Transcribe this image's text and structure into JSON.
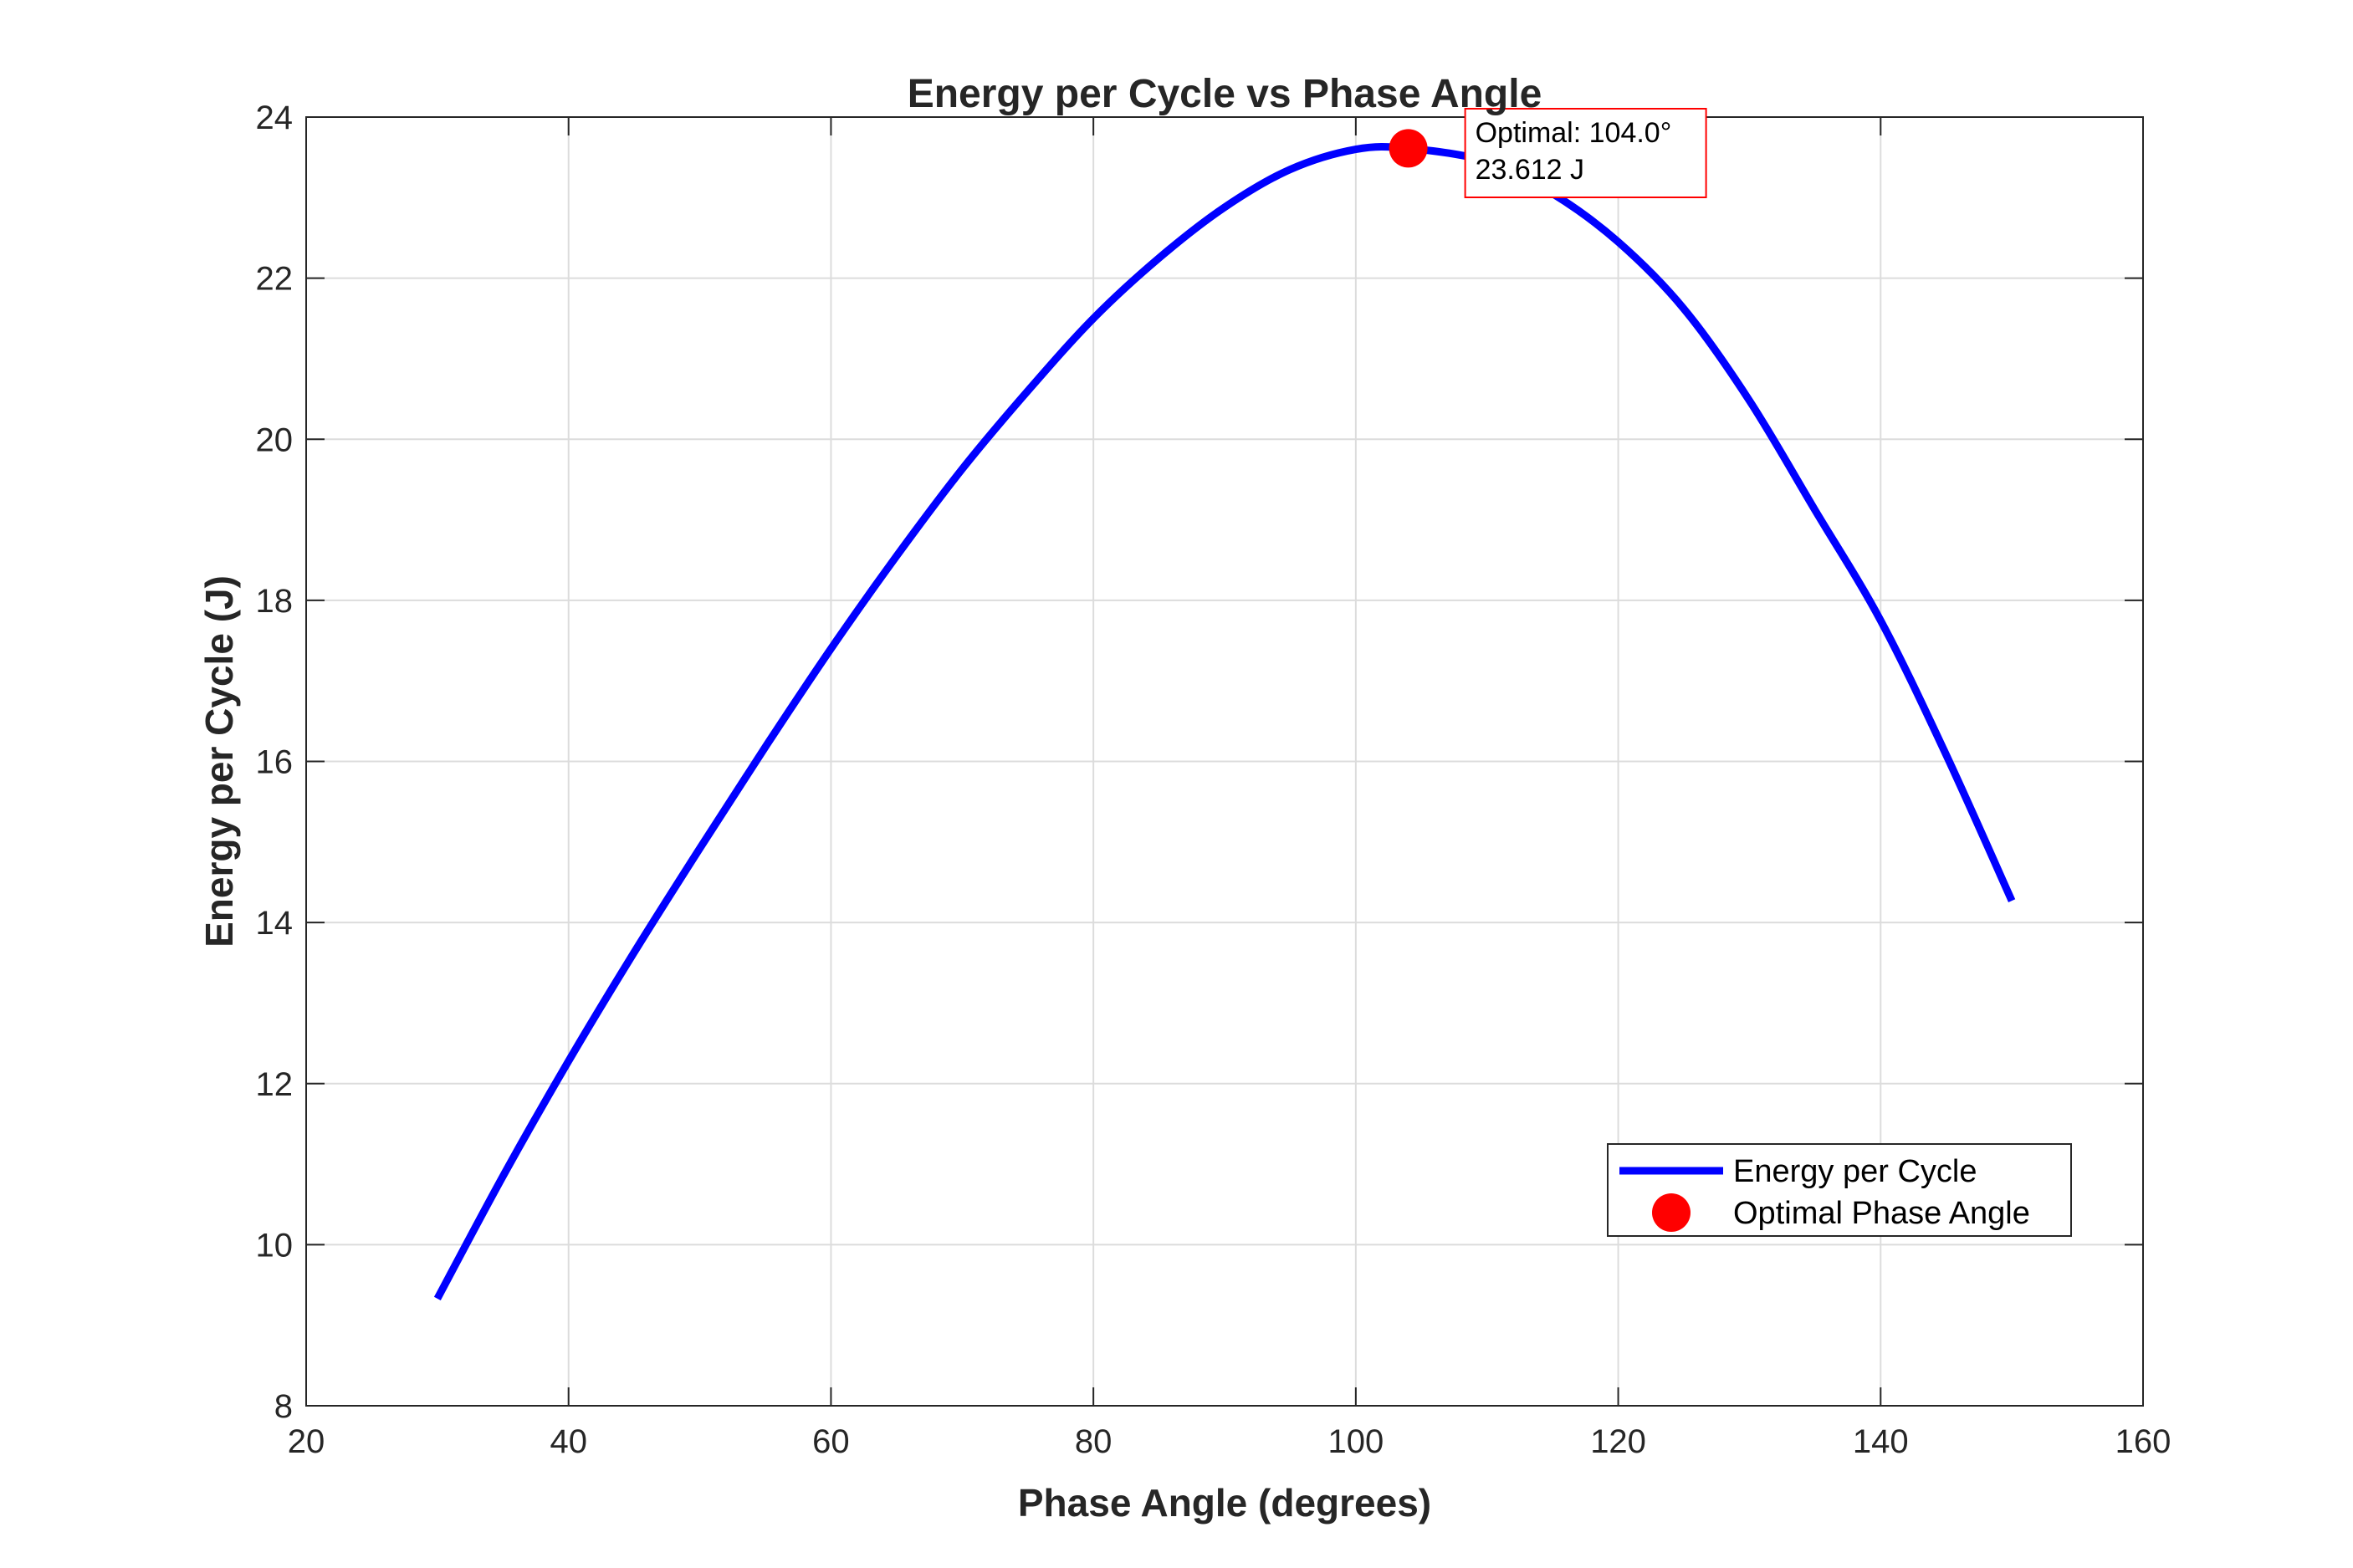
{
  "chart_data": {
    "type": "line",
    "title": "Energy per Cycle vs Phase Angle",
    "xlabel": "Phase Angle (degrees)",
    "ylabel": "Energy per Cycle (J)",
    "xlim": [
      20,
      160
    ],
    "ylim": [
      8,
      24
    ],
    "xticks": [
      20,
      40,
      60,
      80,
      100,
      120,
      140,
      160
    ],
    "yticks": [
      8,
      10,
      12,
      14,
      16,
      18,
      20,
      22,
      24
    ],
    "grid": true,
    "legend_position": "bottom-right",
    "series": [
      {
        "name": "Energy per Cycle",
        "color": "#0000ff",
        "x": [
          30,
          35,
          40,
          45,
          50,
          55,
          60,
          65,
          70,
          75,
          80,
          85,
          90,
          95,
          100,
          104,
          110,
          115,
          120,
          125,
          130,
          135,
          140,
          145,
          150
        ],
        "y": [
          9.33,
          10.85,
          12.28,
          13.63,
          14.92,
          16.18,
          17.4,
          18.55,
          19.63,
          20.6,
          21.5,
          22.25,
          22.88,
          23.35,
          23.6,
          23.612,
          23.45,
          23.05,
          22.45,
          21.62,
          20.48,
          19.12,
          17.75,
          16.08,
          14.27
        ]
      }
    ],
    "markers": [
      {
        "name": "Optimal Phase Angle",
        "color": "#ff0000",
        "x": 104.0,
        "y": 23.612
      }
    ],
    "annotation": {
      "line1": "Optimal: 104.0°",
      "line2": "23.612 J",
      "border_color": "#ff0000"
    }
  }
}
